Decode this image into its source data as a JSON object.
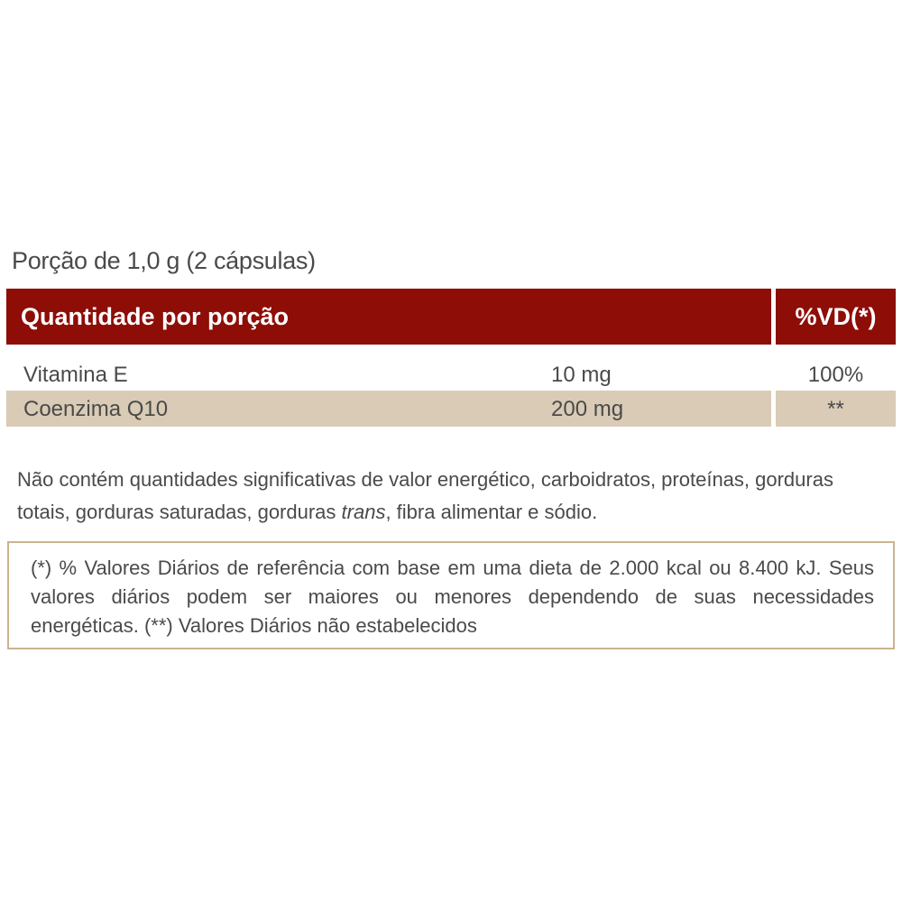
{
  "portion": "Porção de 1,0 g (2 cápsulas)",
  "header": {
    "quantity": "Quantidade por porção",
    "vd": "%VD(*)"
  },
  "rows": [
    {
      "name": "Vitamina E",
      "amount": "10 mg",
      "vd": "100%"
    },
    {
      "name": "Coenzima Q10",
      "amount": "200 mg",
      "vd": "**"
    }
  ],
  "note": {
    "before": "Não contém quantidades significativas de valor energético, carboidratos, proteínas, gorduras totais, gorduras saturadas, gorduras ",
    "italic": "trans",
    "after": ", fibra alimentar e sódio."
  },
  "footnote": "(*) % Valores Diários de referência com base em uma dieta de 2.000 kcal ou 8.400 kJ. Seus valores diários podem ser maiores ou menores dependendo de suas necessidades energéticas. (**) Valores Diários não estabelecidos",
  "colors": {
    "header": "#8e0d07",
    "row_alt": "#d9cbb5",
    "border": "#c9b48f"
  }
}
